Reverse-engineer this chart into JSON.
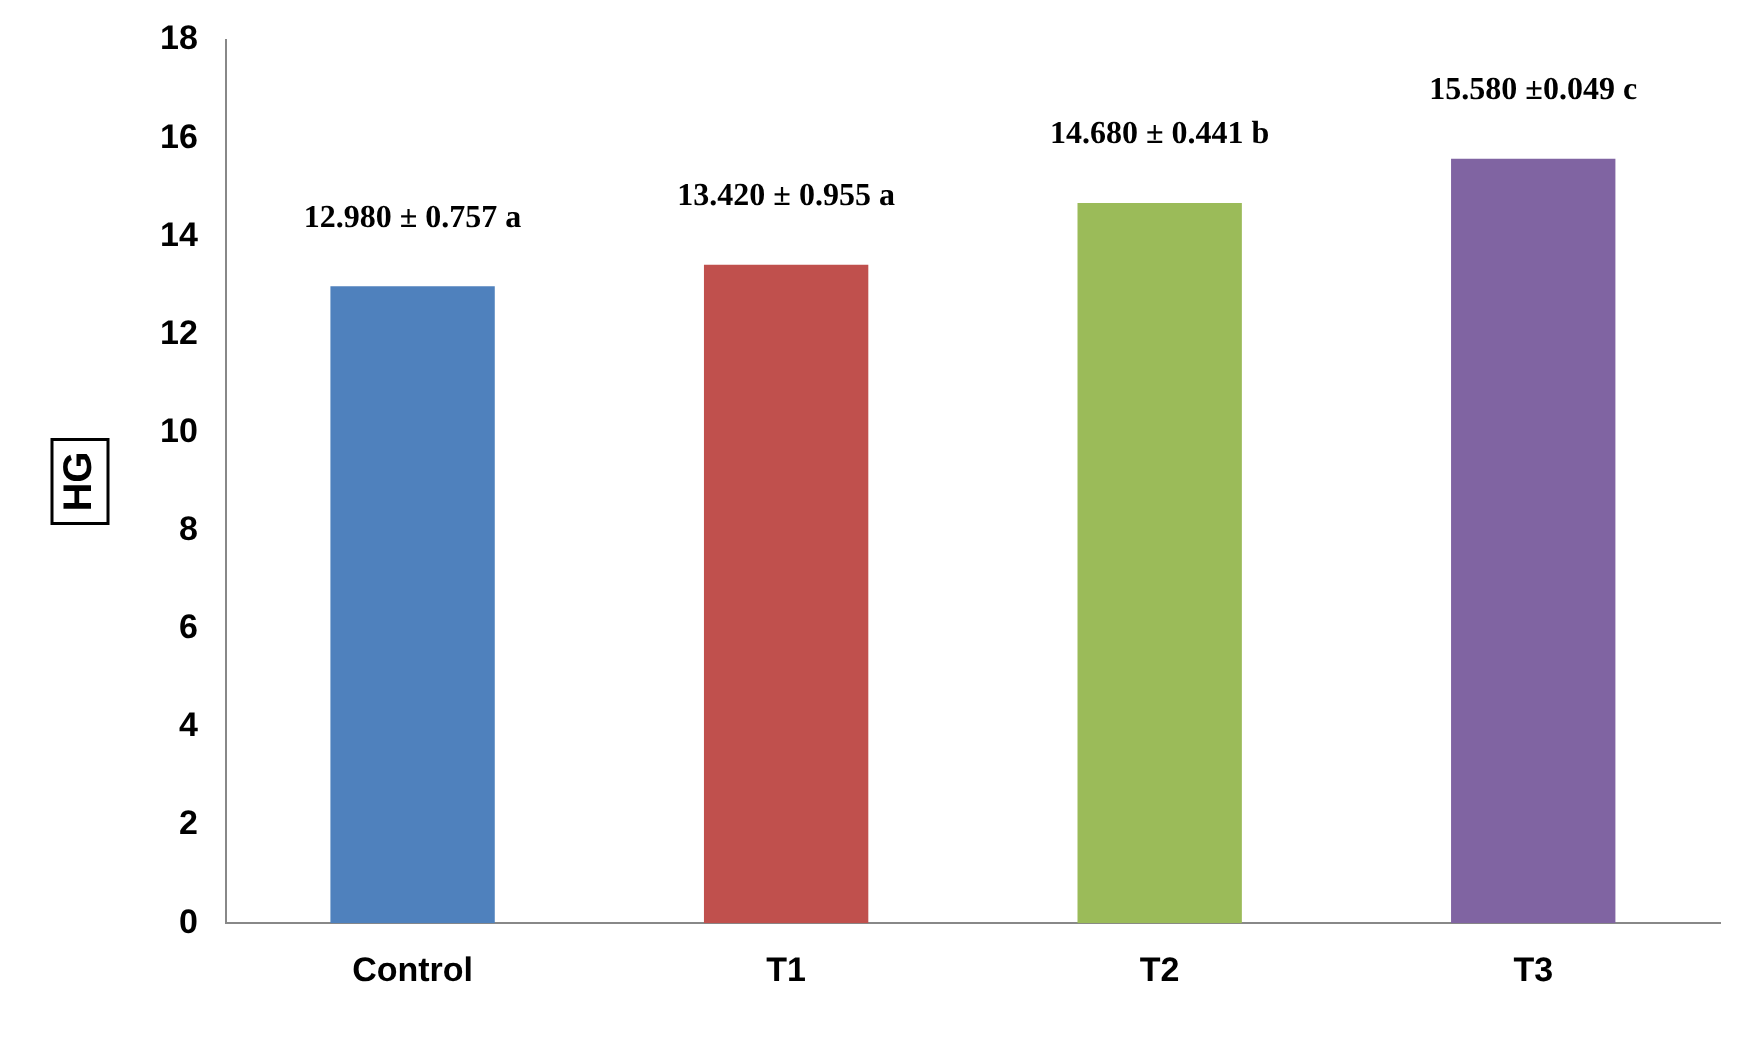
{
  "chart_data": {
    "type": "bar",
    "ylabel": "HG",
    "categories": [
      "Control",
      "T1",
      "T2",
      "T3"
    ],
    "values": [
      12.98,
      13.42,
      14.68,
      15.58
    ],
    "colors": [
      "#4f81bd",
      "#c0504d",
      "#9bbb59",
      "#8064a2"
    ],
    "value_labels": [
      "12.980 ± 0.757 a",
      "13.420 ± 0.955 a",
      "14.680 ± 0.441 b",
      "15.580 ±0.049 c"
    ],
    "ylim": [
      0,
      18
    ],
    "yticks": [
      0,
      2,
      4,
      6,
      8,
      10,
      12,
      14,
      16,
      18
    ],
    "grid": false,
    "legend": false
  }
}
